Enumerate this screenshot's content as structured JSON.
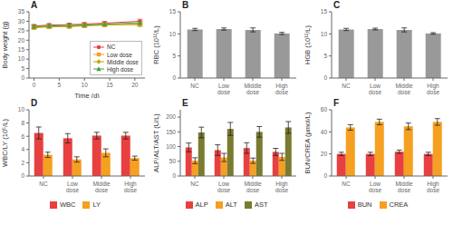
{
  "chart_data": [
    {
      "type": "line",
      "title": "A",
      "xlabel": "Time (d)",
      "ylabel": "Body weight (g)",
      "x": [
        0,
        3,
        7,
        10,
        14,
        21
      ],
      "xlim": [
        -1,
        22
      ],
      "xticks": [
        0,
        5,
        10,
        15,
        20
      ],
      "ylim": [
        0,
        35
      ],
      "yticks": [
        0,
        5,
        10,
        15,
        20,
        25,
        30,
        35
      ],
      "grid": false,
      "legend": "lower right",
      "series": [
        {
          "name": "NC",
          "color": "#e84040",
          "marker": "circle",
          "values": [
            27.5,
            28.0,
            28.2,
            28.5,
            29.0,
            30.0
          ],
          "errors": [
            0.8,
            0.8,
            0.8,
            0.8,
            0.9,
            1.1
          ]
        },
        {
          "name": "Low dose",
          "color": "#f5a020",
          "marker": "square",
          "values": [
            26.5,
            27.0,
            27.2,
            27.5,
            28.0,
            28.5
          ],
          "errors": [
            0.8,
            0.8,
            0.8,
            0.8,
            0.9,
            1.1
          ]
        },
        {
          "name": "Middle dose",
          "color": "#b8a800",
          "marker": "diamond",
          "values": [
            27.0,
            27.2,
            27.3,
            27.8,
            28.2,
            28.2
          ],
          "errors": [
            0.8,
            0.8,
            0.8,
            0.8,
            0.8,
            0.9
          ]
        },
        {
          "name": "High dose",
          "color": "#40a040",
          "marker": "triangle",
          "values": [
            27.2,
            27.5,
            27.8,
            28.0,
            28.5,
            29.2
          ],
          "errors": [
            0.8,
            0.8,
            0.8,
            0.8,
            0.9,
            1.1
          ]
        }
      ]
    },
    {
      "type": "bar",
      "title": "B",
      "ylabel": "RBC (10¹²/L)",
      "categories": [
        "NC",
        "Low\ndose",
        "Middle\ndose",
        "High\ndose"
      ],
      "values": [
        11.0,
        11.1,
        10.9,
        10.1
      ],
      "errors": [
        0.25,
        0.25,
        0.45,
        0.25
      ],
      "color": "#999999",
      "ylim": [
        0,
        15
      ],
      "yticks": [
        0,
        5,
        10,
        15
      ],
      "grid": false
    },
    {
      "type": "bar",
      "title": "C",
      "ylabel": "HGB (10¹²/L)",
      "categories": [
        "NC",
        "Low\ndose",
        "Middle\ndose",
        "High\ndose"
      ],
      "values": [
        11.0,
        11.1,
        10.9,
        10.1
      ],
      "errors": [
        0.25,
        0.2,
        0.45,
        0.18
      ],
      "color": "#999999",
      "ylim": [
        0,
        15
      ],
      "yticks": [
        0,
        5,
        10,
        15
      ],
      "grid": false
    },
    {
      "type": "bar",
      "title": "D",
      "ylabel": "WBC/LY (10⁵/L)",
      "categories": [
        "NC",
        "Low\ndose",
        "Middle\ndose",
        "High\ndose"
      ],
      "series": [
        {
          "name": "WBC",
          "color": "#e84040",
          "values": [
            6.5,
            5.7,
            6.1,
            6.1
          ],
          "errors": [
            0.9,
            0.7,
            0.5,
            0.5
          ]
        },
        {
          "name": "LY",
          "color": "#f5a020",
          "values": [
            3.2,
            2.5,
            3.5,
            2.7
          ],
          "errors": [
            0.4,
            0.4,
            0.6,
            0.3
          ]
        }
      ],
      "ylim": [
        0,
        10
      ],
      "yticks": [
        0,
        2,
        4,
        6,
        8,
        10
      ],
      "grid": false,
      "legend": "bottom"
    },
    {
      "type": "bar",
      "title": "E",
      "ylabel": "ALP/ALT/AST (U/L)",
      "categories": [
        "NC",
        "Low\ndose",
        "Middle\ndose",
        "High\ndose"
      ],
      "series": [
        {
          "name": "ALP",
          "color": "#e84040",
          "values": [
            97,
            88,
            95,
            82
          ],
          "errors": [
            15,
            18,
            18,
            12
          ]
        },
        {
          "name": "ALT",
          "color": "#f5a020",
          "values": [
            52,
            63,
            52,
            65
          ],
          "errors": [
            10,
            14,
            9,
            12
          ]
        },
        {
          "name": "AST",
          "color": "#7a7a30",
          "values": [
            148,
            160,
            150,
            165
          ],
          "errors": [
            18,
            22,
            18,
            20
          ]
        }
      ],
      "ylim": [
        0,
        225
      ],
      "yticks": [
        0,
        50,
        100,
        150,
        200
      ],
      "grid": false,
      "legend": "bottom"
    },
    {
      "type": "bar",
      "title": "F",
      "ylabel": "BUN/CREA (μmol/L)",
      "categories": [
        "NC",
        "Low\ndose",
        "Middle\ndose",
        "High\ndose"
      ],
      "series": [
        {
          "name": "BUN",
          "color": "#e84040",
          "values": [
            20,
            20,
            22,
            20
          ],
          "errors": [
            1.5,
            1.5,
            1.5,
            1.5
          ]
        },
        {
          "name": "CREA",
          "color": "#f5a020",
          "values": [
            44,
            49,
            45,
            49
          ],
          "errors": [
            2.5,
            2.5,
            3.0,
            3.0
          ]
        }
      ],
      "ylim": [
        0,
        60
      ],
      "yticks": [
        0,
        20,
        40,
        60
      ],
      "grid": false,
      "legend": "bottom"
    }
  ]
}
